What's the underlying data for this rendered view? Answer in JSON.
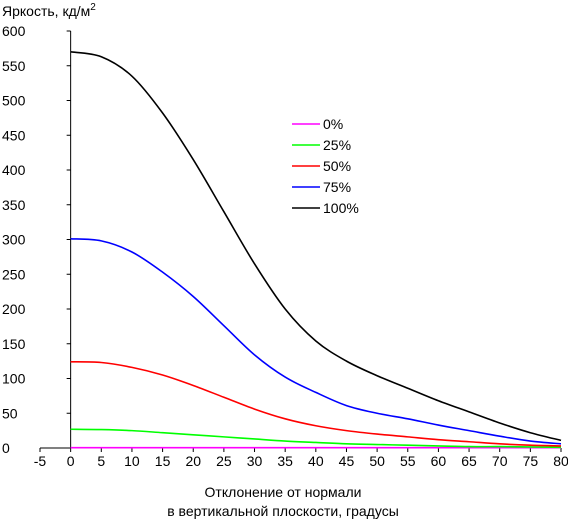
{
  "chart_data": {
    "type": "line",
    "ylabel": "Яркость, кд/м",
    "ylabel_sup": "2",
    "xlabel_line1": "Отклонение от нормали",
    "xlabel_line2": "в вертикальной плоскости, градусы",
    "xlim": [
      -5,
      80
    ],
    "ylim": [
      0,
      600
    ],
    "xticks": [
      -5,
      0,
      5,
      10,
      15,
      20,
      25,
      30,
      35,
      40,
      45,
      50,
      55,
      60,
      65,
      70,
      75,
      80
    ],
    "yticks": [
      0,
      50,
      100,
      150,
      200,
      250,
      300,
      350,
      400,
      450,
      500,
      550,
      600
    ],
    "grid": false,
    "legend_position": "center-right",
    "x": [
      0,
      5,
      10,
      15,
      20,
      25,
      30,
      35,
      40,
      45,
      50,
      55,
      60,
      65,
      70,
      75,
      80
    ],
    "series": [
      {
        "name": "0%",
        "color": "#ff00ff",
        "values": [
          0.5,
          0.5,
          0.5,
          0.5,
          0.5,
          0.5,
          0.5,
          0.5,
          0.5,
          0.5,
          0.5,
          0.5,
          0.5,
          0.5,
          0.5,
          0.5,
          0.5
        ]
      },
      {
        "name": "25%",
        "color": "#00ff00",
        "values": [
          27,
          26.5,
          25,
          22,
          19,
          16,
          13,
          10,
          8,
          6,
          5,
          4,
          3,
          2,
          2,
          1.5,
          1
        ]
      },
      {
        "name": "50%",
        "color": "#ff0000",
        "values": [
          124,
          123,
          116,
          105,
          90,
          73,
          56,
          42,
          32,
          25,
          20,
          16,
          12,
          9,
          6,
          4,
          3
        ]
      },
      {
        "name": "75%",
        "color": "#0000ff",
        "values": [
          301,
          298,
          282,
          253,
          218,
          176,
          134,
          102,
          80,
          61,
          50,
          42,
          33,
          25,
          17,
          10,
          6
        ]
      },
      {
        "name": "100%",
        "color": "#000000",
        "values": [
          570,
          563,
          535,
          482,
          415,
          340,
          265,
          200,
          154,
          125,
          104,
          86,
          68,
          52,
          36,
          22,
          11
        ]
      }
    ]
  }
}
